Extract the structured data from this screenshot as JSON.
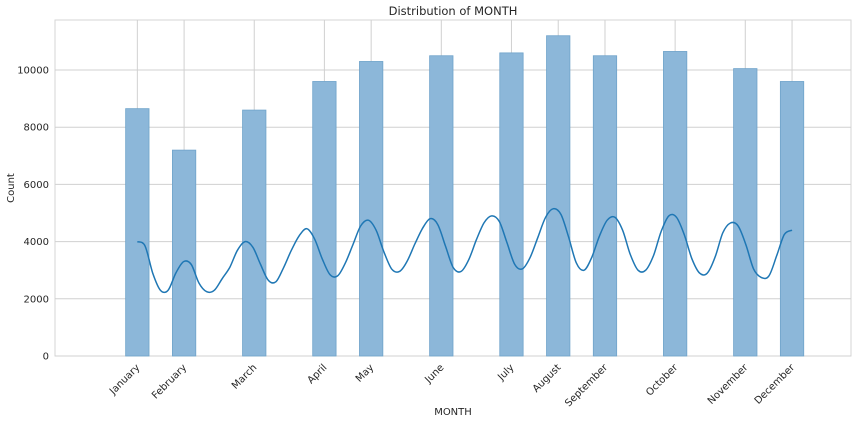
{
  "chart_data": {
    "type": "bar",
    "title": "Distribution of MONTH",
    "xlabel": "MONTH",
    "ylabel": "Count",
    "ylim": [
      0,
      11750
    ],
    "yticks": [
      0,
      2000,
      4000,
      6000,
      8000,
      10000
    ],
    "grid": true,
    "categories": [
      "January",
      "February",
      "March",
      "April",
      "May",
      "June",
      "July",
      "August",
      "September",
      "October",
      "November",
      "December"
    ],
    "values": [
      8650,
      7200,
      8600,
      9600,
      10300,
      10500,
      10600,
      11200,
      10500,
      10650,
      10050,
      9600
    ],
    "kde": [
      [
        0,
        4000
      ],
      [
        0.25,
        3850
      ],
      [
        0.5,
        2900
      ],
      [
        0.75,
        2300
      ],
      [
        1,
        2300
      ],
      [
        1.25,
        2900
      ],
      [
        1.5,
        3300
      ],
      [
        1.75,
        3200
      ],
      [
        2,
        2550
      ],
      [
        2.25,
        2250
      ],
      [
        2.5,
        2300
      ],
      [
        2.75,
        2700
      ],
      [
        3,
        3100
      ],
      [
        3.25,
        3700
      ],
      [
        3.5,
        4000
      ],
      [
        3.75,
        3800
      ],
      [
        4,
        3200
      ],
      [
        4.25,
        2650
      ],
      [
        4.5,
        2600
      ],
      [
        4.75,
        3100
      ],
      [
        5,
        3700
      ],
      [
        5.25,
        4200
      ],
      [
        5.5,
        4450
      ],
      [
        5.75,
        4100
      ],
      [
        6,
        3400
      ],
      [
        6.25,
        2850
      ],
      [
        6.5,
        2800
      ],
      [
        6.75,
        3250
      ],
      [
        7,
        3900
      ],
      [
        7.25,
        4550
      ],
      [
        7.5,
        4750
      ],
      [
        7.75,
        4400
      ],
      [
        8,
        3650
      ],
      [
        8.25,
        3050
      ],
      [
        8.5,
        2950
      ],
      [
        8.75,
        3300
      ],
      [
        9,
        3900
      ],
      [
        9.25,
        4450
      ],
      [
        9.5,
        4800
      ],
      [
        9.75,
        4600
      ],
      [
        10,
        3850
      ],
      [
        10.25,
        3100
      ],
      [
        10.5,
        2950
      ],
      [
        10.75,
        3350
      ],
      [
        11,
        4050
      ],
      [
        11.25,
        4650
      ],
      [
        11.5,
        4900
      ],
      [
        11.75,
        4700
      ],
      [
        12,
        3950
      ],
      [
        12.25,
        3200
      ],
      [
        12.5,
        3050
      ],
      [
        12.75,
        3450
      ],
      [
        13,
        4150
      ],
      [
        13.25,
        4850
      ],
      [
        13.5,
        5150
      ],
      [
        13.75,
        4950
      ],
      [
        14,
        4150
      ],
      [
        14.25,
        3250
      ],
      [
        14.5,
        3000
      ],
      [
        14.75,
        3450
      ],
      [
        15,
        4200
      ],
      [
        15.25,
        4750
      ],
      [
        15.5,
        4850
      ],
      [
        15.75,
        4400
      ],
      [
        16,
        3550
      ],
      [
        16.25,
        3000
      ],
      [
        16.5,
        3000
      ],
      [
        16.75,
        3500
      ],
      [
        17,
        4350
      ],
      [
        17.25,
        4900
      ],
      [
        17.5,
        4850
      ],
      [
        17.75,
        4250
      ],
      [
        18,
        3400
      ],
      [
        18.25,
        2900
      ],
      [
        18.5,
        2900
      ],
      [
        18.75,
        3450
      ],
      [
        19,
        4300
      ],
      [
        19.25,
        4650
      ],
      [
        19.5,
        4550
      ],
      [
        19.75,
        3900
      ],
      [
        20,
        3050
      ],
      [
        20.25,
        2750
      ],
      [
        20.5,
        2800
      ],
      [
        20.75,
        3500
      ],
      [
        21,
        4250
      ],
      [
        21.25,
        4400
      ]
    ],
    "colors": {
      "bar_fill": "#8cb7d9",
      "bar_edge": "#6fa3ca",
      "line": "#1f77b4",
      "grid": "#d0d0d0",
      "text": "#262626"
    }
  }
}
